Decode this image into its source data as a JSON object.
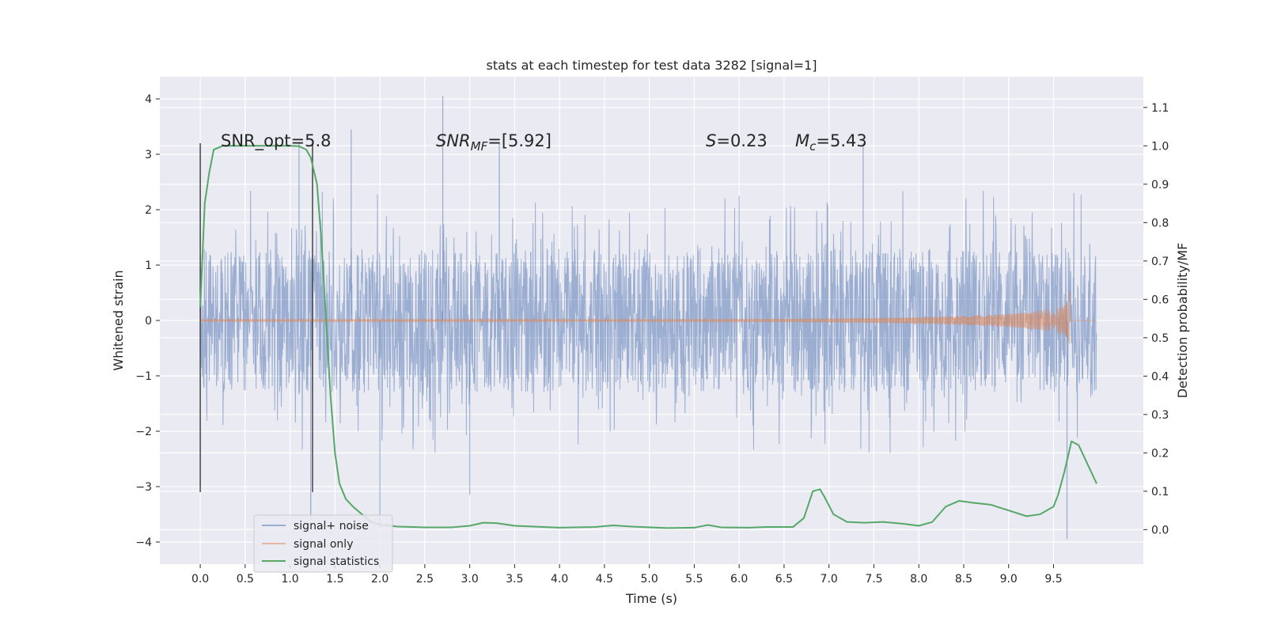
{
  "chart_data": {
    "type": "line",
    "title": "stats at each timestep for test data 3282 [signal=1]",
    "xlabel": "Time (s)",
    "ylabel_left": "Whitened strain",
    "ylabel_right": "Detection probability/MF",
    "xlim": [
      -0.45,
      10.5
    ],
    "ylim_left": [
      -4.4,
      4.4
    ],
    "ylim_right": [
      -0.09,
      1.18
    ],
    "x_ticks": [
      "0.0",
      "0.5",
      "1.0",
      "1.5",
      "2.0",
      "2.5",
      "3.0",
      "3.5",
      "4.0",
      "4.5",
      "5.0",
      "5.5",
      "6.0",
      "6.5",
      "7.0",
      "7.5",
      "8.0",
      "8.5",
      "9.0",
      "9.5"
    ],
    "left_ticks": [
      "4",
      "3",
      "2",
      "1",
      "0",
      "−1",
      "−2",
      "−3",
      "−4"
    ],
    "right_ticks": [
      "1.1",
      "1.0",
      "0.9",
      "0.8",
      "0.7",
      "0.6",
      "0.5",
      "0.4",
      "0.3",
      "0.2",
      "0.1",
      "0.0"
    ],
    "grid": true,
    "legend_position": "bottom-left",
    "annotations": {
      "snr_opt": "SNR_opt=5.8",
      "snr_mf_base": "SNR",
      "snr_mf_sub": "MF",
      "snr_mf_val": "=[5.92]",
      "s_label": "S",
      "s_val": "=0.23",
      "mc_base": "M",
      "mc_sub": "c",
      "mc_val": "=5.43"
    },
    "vlines": [
      {
        "x": 0.0,
        "ymin": -3.1,
        "ymax": 3.2
      },
      {
        "x": 1.25,
        "ymin": -3.1,
        "ymax": 3.2
      }
    ],
    "series": [
      {
        "name": "signal+ noise",
        "color": "#4c72b0",
        "axis": "left",
        "kind": "noise",
        "x_range": [
          0,
          9.98
        ],
        "core_amplitude": 1.3,
        "spikes": [
          {
            "x": 2.7,
            "y": 4.05
          },
          {
            "x": 1.68,
            "y": 3.45
          },
          {
            "x": 3.33,
            "y": 3.2
          },
          {
            "x": 1.1,
            "y": 3.2
          },
          {
            "x": 7.38,
            "y": 3.2
          },
          {
            "x": 9.65,
            "y": -3.95
          },
          {
            "x": 2.0,
            "y": -3.75
          },
          {
            "x": 1.23,
            "y": -3.6
          },
          {
            "x": 3.0,
            "y": -3.15
          }
        ]
      },
      {
        "name": "signal only",
        "color": "#dd8452",
        "axis": "left",
        "kind": "chirp",
        "x_range": [
          0,
          9.68
        ],
        "peak_amplitude": 0.55
      },
      {
        "name": "signal statistics",
        "color": "#55a868",
        "axis": "right",
        "kind": "line",
        "points": [
          [
            0.0,
            0.58
          ],
          [
            0.05,
            0.85
          ],
          [
            0.1,
            0.93
          ],
          [
            0.15,
            0.99
          ],
          [
            0.25,
            1.0
          ],
          [
            0.5,
            1.0
          ],
          [
            0.75,
            1.0
          ],
          [
            1.0,
            1.0
          ],
          [
            1.1,
            0.999
          ],
          [
            1.18,
            0.99
          ],
          [
            1.23,
            0.97
          ],
          [
            1.3,
            0.9
          ],
          [
            1.35,
            0.75
          ],
          [
            1.4,
            0.55
          ],
          [
            1.45,
            0.35
          ],
          [
            1.5,
            0.2
          ],
          [
            1.55,
            0.12
          ],
          [
            1.62,
            0.08
          ],
          [
            1.7,
            0.06
          ],
          [
            1.8,
            0.04
          ],
          [
            1.9,
            0.02
          ],
          [
            2.0,
            0.013
          ],
          [
            2.2,
            0.008
          ],
          [
            2.5,
            0.006
          ],
          [
            2.8,
            0.006
          ],
          [
            3.0,
            0.01
          ],
          [
            3.15,
            0.018
          ],
          [
            3.3,
            0.017
          ],
          [
            3.5,
            0.01
          ],
          [
            4.0,
            0.005
          ],
          [
            4.4,
            0.007
          ],
          [
            4.6,
            0.011
          ],
          [
            4.8,
            0.008
          ],
          [
            5.2,
            0.004
          ],
          [
            5.5,
            0.005
          ],
          [
            5.65,
            0.012
          ],
          [
            5.8,
            0.006
          ],
          [
            6.1,
            0.005
          ],
          [
            6.3,
            0.007
          ],
          [
            6.6,
            0.007
          ],
          [
            6.72,
            0.03
          ],
          [
            6.82,
            0.1
          ],
          [
            6.9,
            0.105
          ],
          [
            6.95,
            0.085
          ],
          [
            7.05,
            0.04
          ],
          [
            7.2,
            0.02
          ],
          [
            7.4,
            0.018
          ],
          [
            7.6,
            0.02
          ],
          [
            7.8,
            0.016
          ],
          [
            8.0,
            0.01
          ],
          [
            8.15,
            0.02
          ],
          [
            8.3,
            0.06
          ],
          [
            8.45,
            0.075
          ],
          [
            8.6,
            0.07
          ],
          [
            8.8,
            0.065
          ],
          [
            9.0,
            0.05
          ],
          [
            9.2,
            0.035
          ],
          [
            9.35,
            0.04
          ],
          [
            9.5,
            0.06
          ],
          [
            9.55,
            0.09
          ],
          [
            9.62,
            0.15
          ],
          [
            9.7,
            0.23
          ],
          [
            9.78,
            0.22
          ],
          [
            9.88,
            0.17
          ],
          [
            9.98,
            0.12
          ]
        ]
      }
    ]
  }
}
